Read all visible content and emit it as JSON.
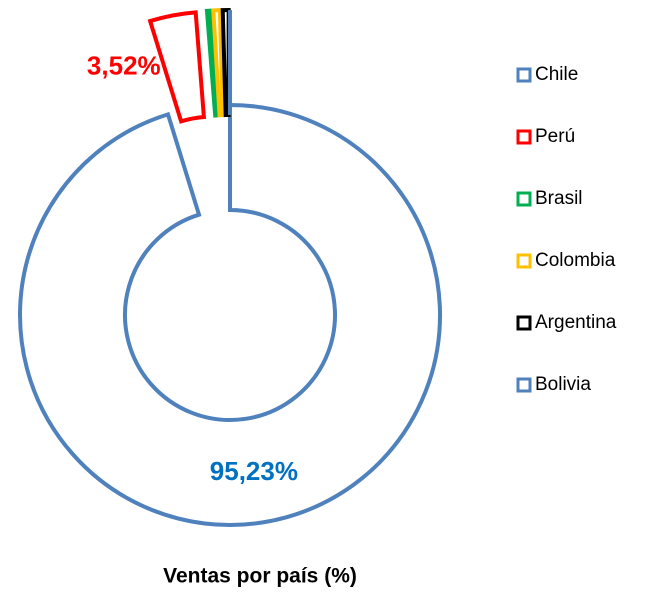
{
  "chart_data": {
    "type": "donut",
    "title": "Ventas por país (%)",
    "categories": [
      "Chile",
      "Perú",
      "Brasil",
      "Colombia",
      "Argentina",
      "Bolivia"
    ],
    "values": [
      95.23,
      3.52,
      0.3,
      0.5,
      0.45,
      0
    ],
    "value_labels": [
      "95,23%",
      "3,52%",
      null,
      null,
      null,
      null
    ],
    "colors": [
      "#4f81bd",
      "#ff0000",
      "#00b050",
      "#ffc000",
      "#000000",
      "#4f81bd"
    ],
    "label_colors": [
      "#0070c0",
      "#ff0000",
      null,
      null,
      null,
      null
    ],
    "legend": "right"
  }
}
